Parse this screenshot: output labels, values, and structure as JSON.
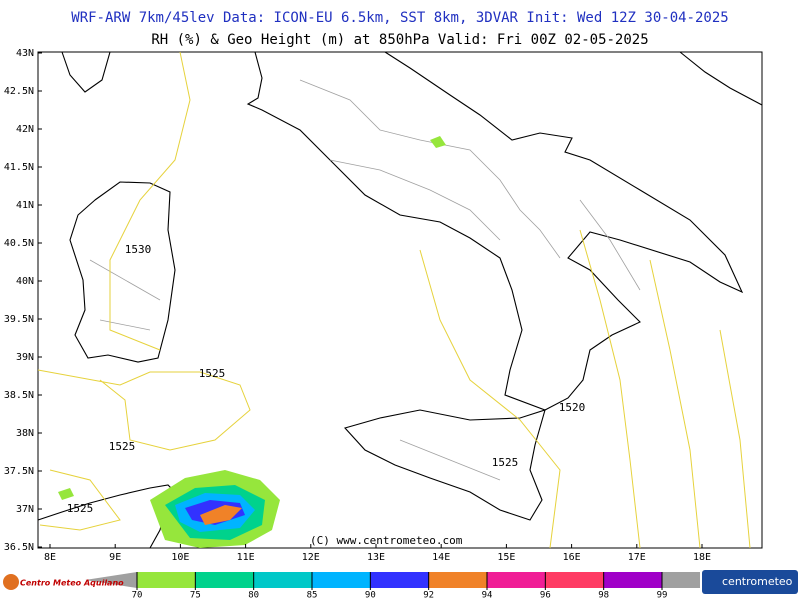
{
  "header": {
    "line1": "WRF-ARW 7km/45lev  Data: ICON-EU 6.5km, SST 8km, 3DVAR  Init: Wed 12Z 30-04-2025",
    "line2": "RH (%) & Geo Height (m) at 850hPa  Valid: Fri 00Z 02-05-2025"
  },
  "map": {
    "lat_labels": [
      "43N",
      "42.5N",
      "42N",
      "41.5N",
      "41N",
      "40.5N",
      "40N",
      "39.5N",
      "39N",
      "38.5N",
      "38N",
      "37.5N",
      "37N",
      "36.5N"
    ],
    "lon_labels": [
      "8E",
      "9E",
      "10E",
      "11E",
      "12E",
      "13E",
      "14E",
      "15E",
      "16E",
      "17E",
      "18E"
    ],
    "contour_labels": [
      "1530",
      "1525",
      "1525",
      "1525",
      "1520",
      "1525"
    ],
    "copyright": "(C) www.centrometeo.com"
  },
  "colorbar": {
    "levels": [
      70,
      75,
      80,
      85,
      90,
      92,
      94,
      96,
      98,
      99
    ],
    "colors": [
      "#96e63c",
      "#00d28c",
      "#00c8c8",
      "#00b4ff",
      "#3232ff",
      "#f08228",
      "#f01e96",
      "#ff3c64",
      "#a000c8"
    ]
  },
  "logos": {
    "left": "Centro Meteo Aquilano",
    "right": "centrometeo"
  }
}
